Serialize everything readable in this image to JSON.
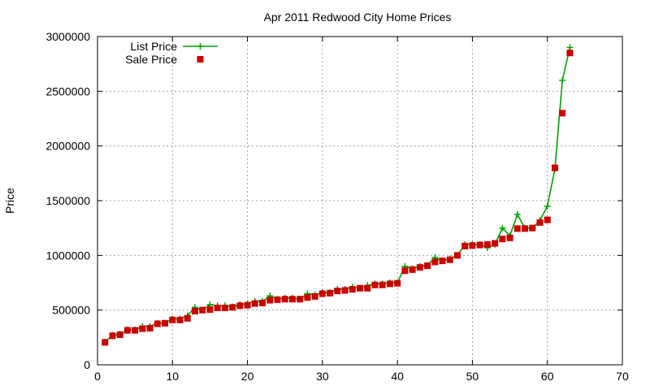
{
  "chart_data": {
    "type": "line",
    "title": "Apr 2011 Redwood City Home Prices",
    "xlabel": "",
    "ylabel": "Price",
    "xlim": [
      0,
      70
    ],
    "ylim": [
      0,
      3000000
    ],
    "x_ticks": [
      0,
      10,
      20,
      30,
      40,
      50,
      60,
      70
    ],
    "y_ticks": [
      0,
      500000,
      1000000,
      1500000,
      2000000,
      2500000,
      3000000
    ],
    "x_tick_labels": [
      "0",
      "10",
      "20",
      "30",
      "40",
      "50",
      "60",
      "70"
    ],
    "y_tick_labels": [
      "0",
      "500000",
      "1000000",
      "1500000",
      "2000000",
      "2500000",
      "3000000"
    ],
    "grid": true,
    "legend_position": "top-left",
    "series": [
      {
        "name": "List Price",
        "style": "line-plus",
        "color": "#00a000",
        "x": [
          1,
          2,
          3,
          4,
          5,
          6,
          7,
          8,
          9,
          10,
          11,
          12,
          13,
          14,
          15,
          16,
          17,
          18,
          19,
          20,
          21,
          22,
          23,
          24,
          25,
          26,
          27,
          28,
          29,
          30,
          31,
          32,
          33,
          34,
          35,
          36,
          37,
          38,
          39,
          40,
          41,
          42,
          43,
          44,
          45,
          46,
          47,
          48,
          49,
          50,
          51,
          52,
          53,
          54,
          55,
          56,
          57,
          58,
          59,
          60,
          61,
          62,
          63
        ],
        "values": [
          210000,
          270000,
          280000,
          320000,
          320000,
          350000,
          350000,
          380000,
          380000,
          420000,
          420000,
          450000,
          525000,
          500000,
          550000,
          540000,
          540000,
          530000,
          550000,
          560000,
          580000,
          580000,
          630000,
          600000,
          610000,
          610000,
          600000,
          650000,
          640000,
          660000,
          660000,
          690000,
          690000,
          710000,
          700000,
          725000,
          740000,
          740000,
          750000,
          750000,
          900000,
          880000,
          900000,
          910000,
          980000,
          950000,
          970000,
          1000000,
          1100000,
          1100000,
          1100000,
          1070000,
          1100000,
          1250000,
          1180000,
          1375000,
          1250000,
          1250000,
          1320000,
          1450000,
          1790000,
          2600000,
          2900000
        ]
      },
      {
        "name": "Sale Price",
        "style": "square",
        "color": "#cc0000",
        "x": [
          1,
          2,
          3,
          4,
          5,
          6,
          7,
          8,
          9,
          10,
          11,
          12,
          13,
          14,
          15,
          16,
          17,
          18,
          19,
          20,
          21,
          22,
          23,
          24,
          25,
          26,
          27,
          28,
          29,
          30,
          31,
          32,
          33,
          34,
          35,
          36,
          37,
          38,
          39,
          40,
          41,
          42,
          43,
          44,
          45,
          46,
          47,
          48,
          49,
          50,
          51,
          52,
          53,
          54,
          55,
          56,
          57,
          58,
          59,
          60,
          61,
          62,
          63
        ],
        "values": [
          205000,
          265000,
          275000,
          315000,
          315000,
          330000,
          335000,
          375000,
          380000,
          410000,
          410000,
          425000,
          490000,
          500000,
          505000,
          520000,
          520000,
          525000,
          540000,
          545000,
          560000,
          565000,
          590000,
          595000,
          600000,
          600000,
          600000,
          615000,
          625000,
          650000,
          655000,
          675000,
          680000,
          690000,
          700000,
          700000,
          730000,
          730000,
          740000,
          745000,
          860000,
          870000,
          890000,
          905000,
          940000,
          950000,
          960000,
          1000000,
          1085000,
          1090000,
          1095000,
          1100000,
          1110000,
          1150000,
          1160000,
          1245000,
          1245000,
          1250000,
          1300000,
          1325000,
          1800000,
          2300000,
          2850000
        ]
      }
    ]
  }
}
